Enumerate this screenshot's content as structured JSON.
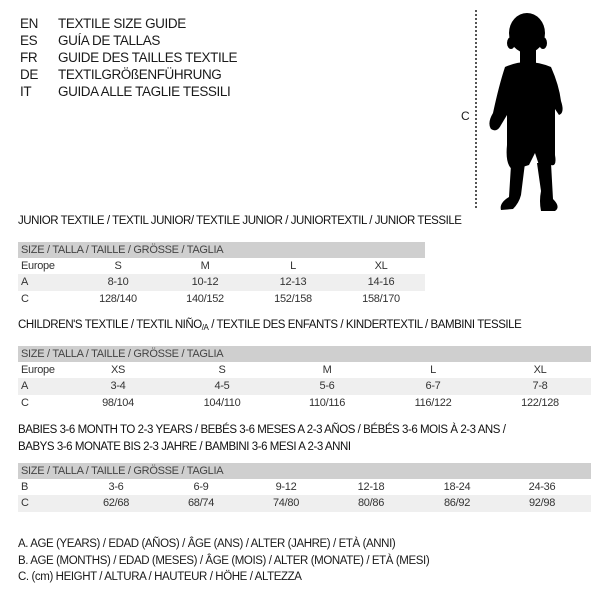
{
  "header": {
    "languages": [
      {
        "code": "EN",
        "title": "TEXTILE SIZE GUIDE"
      },
      {
        "code": "ES",
        "title": "GUÍA DE TALLAS"
      },
      {
        "code": "FR",
        "title": "GUIDE DES TAILLES TEXTILE"
      },
      {
        "code": "DE",
        "title": "TEXTILGRÖßENFÜHRUNG"
      },
      {
        "code": "IT",
        "title": "GUIDA ALLE TAGLIE TESSILI"
      }
    ]
  },
  "figure": {
    "measure_label": "C",
    "icon": "child-silhouette-icon"
  },
  "junior": {
    "title": "JUNIOR TEXTILE / TEXTIL JUNIOR/ TEXTILE JUNIOR / JUNIORTEXTIL / JUNIOR TESSILE",
    "header": "SIZE / TALLA / TAILLE / GRÖSSE / TAGLIA",
    "rows": [
      {
        "label": "Europe",
        "cells": [
          "S",
          "M",
          "L",
          "XL"
        ]
      },
      {
        "label": "A",
        "cells": [
          "8-10",
          "10-12",
          "12-13",
          "14-16"
        ]
      },
      {
        "label": "C",
        "cells": [
          "128/140",
          "140/152",
          "152/158",
          "158/170"
        ]
      }
    ]
  },
  "children": {
    "title_pre": "CHILDREN'S TEXTILE / TEXTIL NIÑO",
    "title_sub": "/A",
    "title_post": " / TEXTILE DES ENFANTS / KINDERTEXTIL / BAMBINI TESSILE",
    "header": "SIZE / TALLA / TAILLE / GRÖSSE / TAGLIA",
    "rows": [
      {
        "label": "Europe",
        "cells": [
          "XS",
          "S",
          "M",
          "L",
          "XL"
        ]
      },
      {
        "label": "A",
        "cells": [
          "3-4",
          "4-5",
          "5-6",
          "6-7",
          "7-8"
        ]
      },
      {
        "label": "C",
        "cells": [
          "98/104",
          "104/110",
          "110/116",
          "116/122",
          "122/128"
        ]
      }
    ]
  },
  "babies": {
    "title_line1": "BABIES 3-6 MONTH TO 2-3 YEARS / BEBÉS 3-6 MESES A 2-3 AÑOS / BÉBÉS 3-6 MOIS À 2-3 ANS /",
    "title_line2": "BABYS 3-6 MONATE BIS 2-3 JAHRE / BAMBINI 3-6 MESI A 2-3 ANNI",
    "header": "SIZE / TALLA / TAILLE / GRÖSSE / TAGLIA",
    "rows": [
      {
        "label": "B",
        "cells": [
          "3-6",
          "6-9",
          "9-12",
          "12-18",
          "18-24",
          "24-36"
        ]
      },
      {
        "label": "C",
        "cells": [
          "62/68",
          "68/74",
          "74/80",
          "80/86",
          "86/92",
          "92/98"
        ]
      }
    ]
  },
  "legend": [
    "A. AGE (YEARS) / EDAD (AÑOS) / ÂGE (ANS) / ALTER (JAHRE) / ETÀ (ANNI)",
    "B. AGE (MONTHS) / EDAD (MESES) / ÂGE (MOIS) / ALTER (MONATE) / ETÀ (MESI)",
    "C. (cm) HEIGHT / ALTURA / HAUTEUR / HÖHE / ALTEZZA"
  ],
  "colors": {
    "header_bar": "#cfcfcf",
    "stripe": "#efefef",
    "text": "#1a1a1a"
  }
}
